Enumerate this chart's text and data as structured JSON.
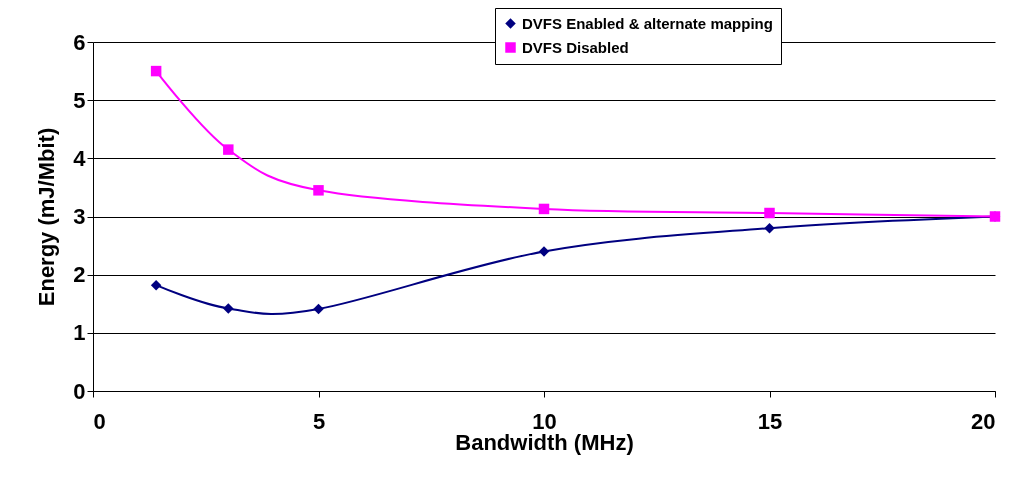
{
  "chart_data": {
    "type": "line",
    "xlabel": "Bandwidth (MHz)",
    "ylabel": "Energy (mJ/Mbit)",
    "xlim": [
      0,
      20
    ],
    "xticks": [
      0,
      5,
      10,
      15,
      20
    ],
    "ylim": [
      0,
      6
    ],
    "yticks": [
      0,
      1,
      2,
      3,
      4,
      5,
      6
    ],
    "grid": "y",
    "legend": "top right",
    "series": [
      {
        "name": "DVFS Enabled & alternate mapping",
        "color": "#000080",
        "marker": "diamond",
        "x": [
          1.4,
          3,
          5,
          10,
          15,
          20
        ],
        "values": [
          1.82,
          1.42,
          1.41,
          2.4,
          2.8,
          3.0
        ]
      },
      {
        "name": "DVFS Disabled",
        "color": "#ff00ff",
        "marker": "square",
        "x": [
          1.4,
          3,
          5,
          10,
          15,
          20
        ],
        "values": [
          5.5,
          4.15,
          3.45,
          3.13,
          3.06,
          3.0
        ]
      }
    ]
  }
}
